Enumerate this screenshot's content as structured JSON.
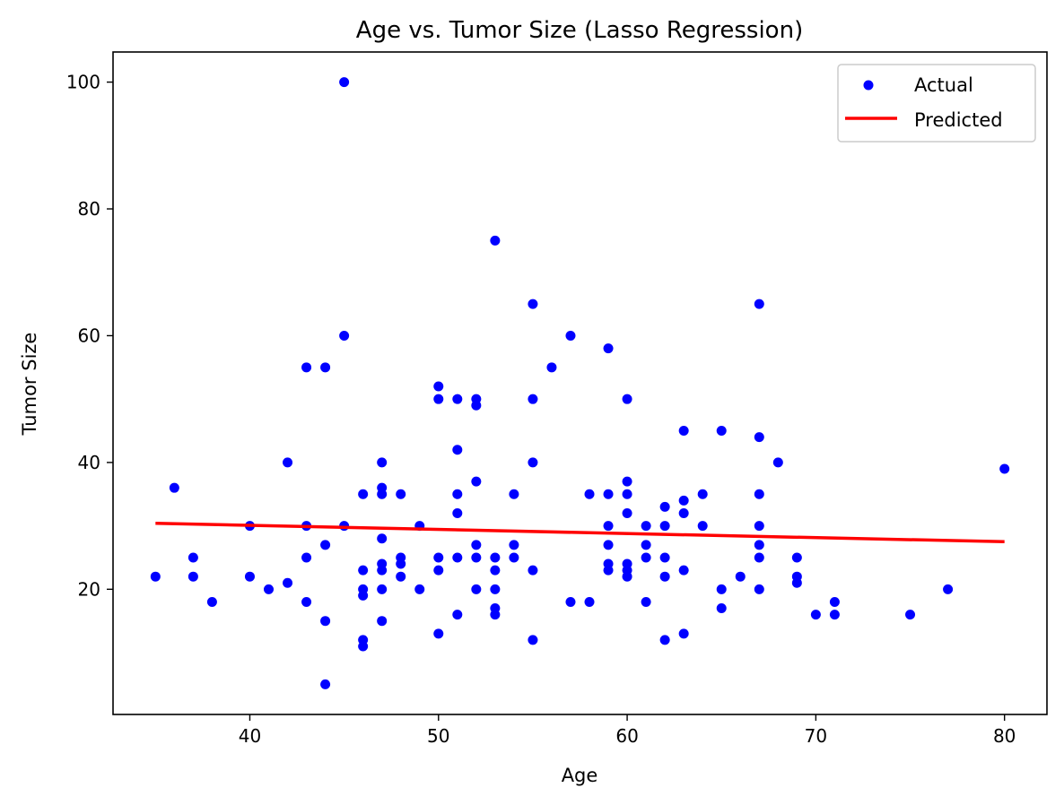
{
  "chart_data": {
    "type": "scatter",
    "title": "Age vs. Tumor Size (Lasso Regression)",
    "xlabel": "Age",
    "ylabel": "Tumor Size",
    "xlim": [
      32.75,
      82.25
    ],
    "ylim": [
      0.25,
      104.75
    ],
    "xticks": [
      40,
      50,
      60,
      70,
      80
    ],
    "yticks": [
      20,
      40,
      60,
      80,
      100
    ],
    "grid": false,
    "legend_position": "top-right",
    "series": [
      {
        "name": "Actual",
        "kind": "scatter",
        "color": "#0000ff",
        "points": [
          [
            35,
            22
          ],
          [
            36,
            36
          ],
          [
            37,
            25
          ],
          [
            37,
            22
          ],
          [
            38,
            18
          ],
          [
            40,
            30
          ],
          [
            40,
            22
          ],
          [
            41,
            20
          ],
          [
            42,
            40
          ],
          [
            42,
            21
          ],
          [
            43,
            55
          ],
          [
            43,
            30
          ],
          [
            43,
            25
          ],
          [
            43,
            18
          ],
          [
            44,
            55
          ],
          [
            44,
            27
          ],
          [
            44,
            15
          ],
          [
            44,
            5
          ],
          [
            45,
            100
          ],
          [
            45,
            60
          ],
          [
            45,
            30
          ],
          [
            46,
            35
          ],
          [
            46,
            23
          ],
          [
            46,
            20
          ],
          [
            46,
            19
          ],
          [
            46,
            12
          ],
          [
            46,
            11
          ],
          [
            47,
            40
          ],
          [
            47,
            36
          ],
          [
            47,
            35
          ],
          [
            47,
            28
          ],
          [
            47,
            24
          ],
          [
            47,
            23
          ],
          [
            47,
            20
          ],
          [
            47,
            15
          ],
          [
            48,
            35
          ],
          [
            48,
            25
          ],
          [
            48,
            24
          ],
          [
            48,
            22
          ],
          [
            49,
            30
          ],
          [
            49,
            20
          ],
          [
            50,
            52
          ],
          [
            50,
            50
          ],
          [
            50,
            25
          ],
          [
            50,
            23
          ],
          [
            50,
            13
          ],
          [
            51,
            50
          ],
          [
            51,
            42
          ],
          [
            51,
            35
          ],
          [
            51,
            32
          ],
          [
            51,
            25
          ],
          [
            51,
            16
          ],
          [
            52,
            50
          ],
          [
            52,
            49
          ],
          [
            52,
            37
          ],
          [
            52,
            27
          ],
          [
            52,
            25
          ],
          [
            52,
            20
          ],
          [
            53,
            75
          ],
          [
            53,
            25
          ],
          [
            53,
            23
          ],
          [
            53,
            20
          ],
          [
            53,
            17
          ],
          [
            53,
            16
          ],
          [
            54,
            35
          ],
          [
            54,
            27
          ],
          [
            54,
            25
          ],
          [
            55,
            65
          ],
          [
            55,
            50
          ],
          [
            55,
            40
          ],
          [
            55,
            23
          ],
          [
            55,
            12
          ],
          [
            56,
            55
          ],
          [
            57,
            60
          ],
          [
            57,
            18
          ],
          [
            58,
            35
          ],
          [
            58,
            18
          ],
          [
            59,
            58
          ],
          [
            59,
            35
          ],
          [
            59,
            30
          ],
          [
            59,
            27
          ],
          [
            59,
            24
          ],
          [
            59,
            23
          ],
          [
            60,
            50
          ],
          [
            60,
            37
          ],
          [
            60,
            35
          ],
          [
            60,
            32
          ],
          [
            60,
            24
          ],
          [
            60,
            23
          ],
          [
            60,
            22
          ],
          [
            61,
            30
          ],
          [
            61,
            27
          ],
          [
            61,
            25
          ],
          [
            61,
            18
          ],
          [
            62,
            33
          ],
          [
            62,
            30
          ],
          [
            62,
            25
          ],
          [
            62,
            22
          ],
          [
            62,
            12
          ],
          [
            63,
            45
          ],
          [
            63,
            34
          ],
          [
            63,
            32
          ],
          [
            63,
            23
          ],
          [
            63,
            13
          ],
          [
            64,
            35
          ],
          [
            64,
            30
          ],
          [
            65,
            45
          ],
          [
            65,
            20
          ],
          [
            65,
            17
          ],
          [
            66,
            22
          ],
          [
            67,
            65
          ],
          [
            67,
            44
          ],
          [
            67,
            35
          ],
          [
            67,
            30
          ],
          [
            67,
            27
          ],
          [
            67,
            25
          ],
          [
            67,
            20
          ],
          [
            68,
            40
          ],
          [
            69,
            25
          ],
          [
            69,
            22
          ],
          [
            69,
            21
          ],
          [
            70,
            16
          ],
          [
            71,
            18
          ],
          [
            71,
            16
          ],
          [
            75,
            16
          ],
          [
            77,
            20
          ],
          [
            80,
            39
          ]
        ]
      },
      {
        "name": "Predicted",
        "kind": "line",
        "color": "#ff0000",
        "points": [
          [
            35,
            30.4
          ],
          [
            80,
            27.5
          ]
        ]
      }
    ]
  }
}
